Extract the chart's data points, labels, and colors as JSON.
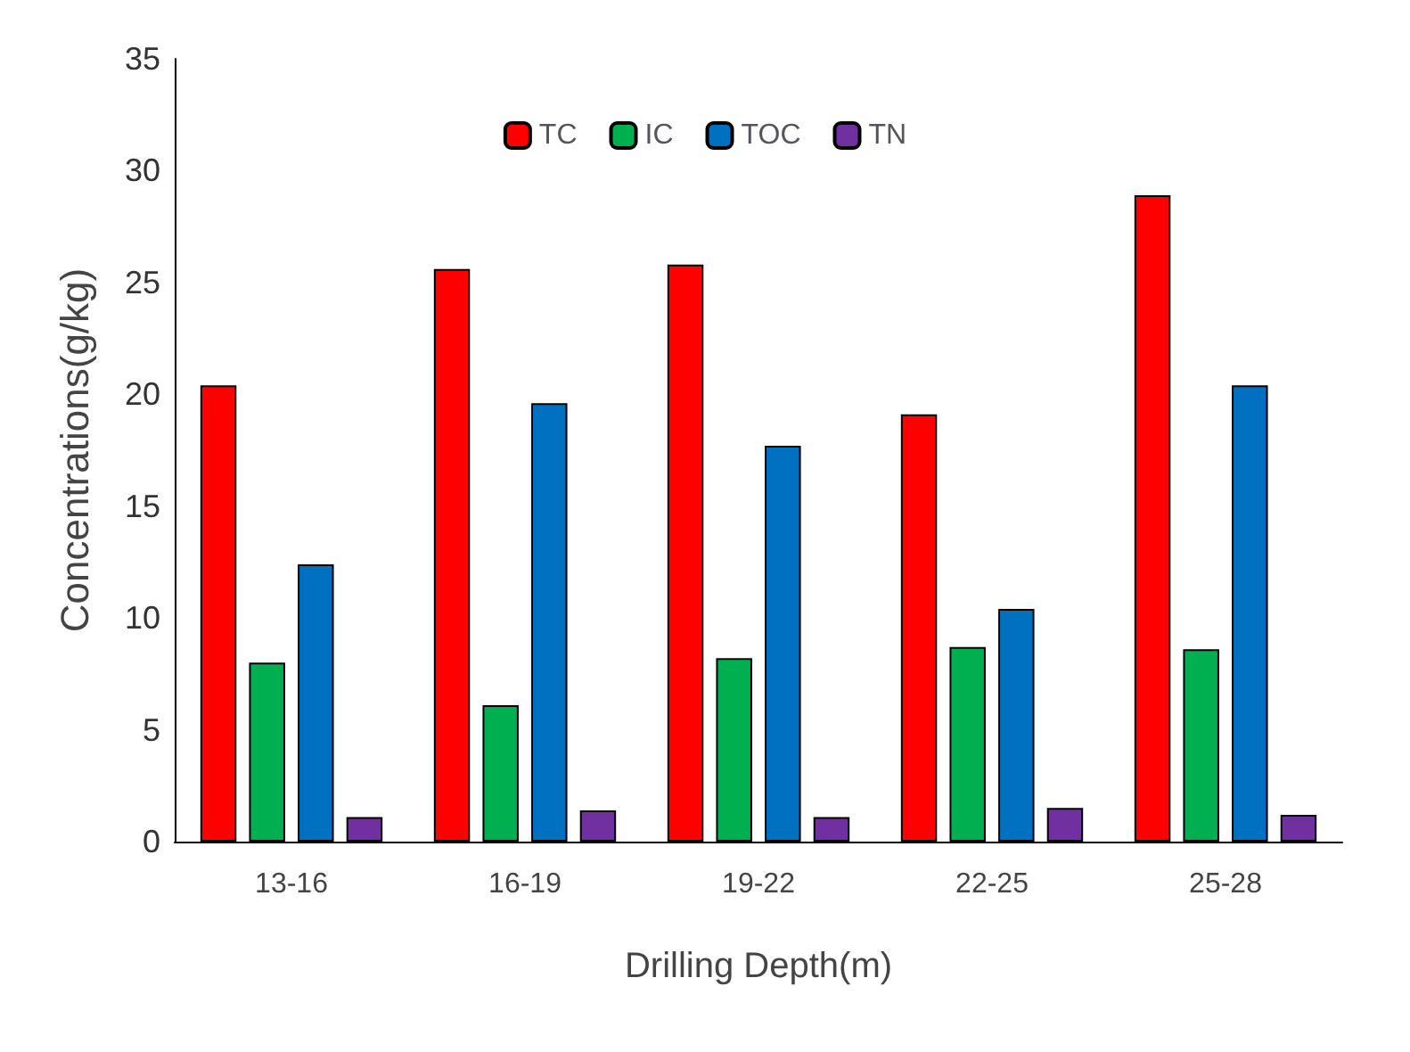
{
  "chart_data": {
    "type": "bar",
    "xlabel": "Drilling Depth(m)",
    "ylabel": "Concentrations(g/kg)",
    "categories": [
      "13-16",
      "16-19",
      "19-22",
      "22-25",
      "25-28"
    ],
    "series": [
      {
        "name": "TC",
        "color": "#ff0000",
        "values": [
          20.4,
          25.6,
          25.8,
          19.1,
          28.9
        ]
      },
      {
        "name": "IC",
        "color": "#00b050",
        "values": [
          8.0,
          6.1,
          8.2,
          8.7,
          8.6
        ]
      },
      {
        "name": "TOC",
        "color": "#0070c0",
        "values": [
          12.4,
          19.6,
          17.7,
          10.4,
          20.4
        ]
      },
      {
        "name": "TN",
        "color": "#7030a0",
        "values": [
          1.1,
          1.4,
          1.1,
          1.5,
          1.2
        ]
      }
    ],
    "ylim": [
      0,
      35
    ],
    "yticks": [
      0,
      5,
      10,
      15,
      20,
      25,
      30,
      35
    ],
    "grid": false,
    "legend": "top"
  }
}
